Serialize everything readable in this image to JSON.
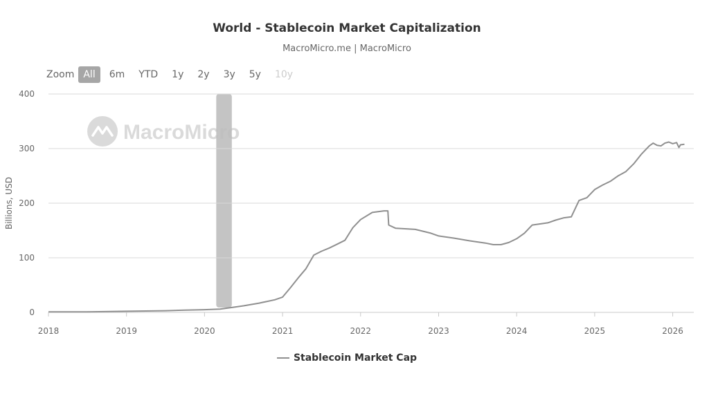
{
  "title": "World - Stablecoin Market Capitalization",
  "subtitle": "MacroMicro.me | MacroMicro",
  "watermark": "MacroMicro",
  "zoom": {
    "label": "Zoom",
    "buttons": [
      "All",
      "6m",
      "YTD",
      "1y",
      "2y",
      "3y",
      "5y",
      "10y"
    ],
    "active": "All",
    "disabled": [
      "10y"
    ]
  },
  "legend_label": "Stablecoin Market Cap",
  "colors": {
    "line": "#8f8f8f",
    "band": "#c4c4c4",
    "grid": "#d9d9d9"
  },
  "chart_data": {
    "type": "line",
    "title": "World - Stablecoin Market Capitalization",
    "subtitle": "MacroMicro.me | MacroMicro",
    "xlabel": "",
    "ylabel": "Billions, USD",
    "ylim": [
      0,
      400
    ],
    "xlim": [
      2018.0,
      2026.27
    ],
    "yticks": [
      0,
      100,
      200,
      300,
      400
    ],
    "xticks": [
      "2018",
      "2019",
      "2020",
      "2021",
      "2022",
      "2023",
      "2024",
      "2025",
      "2026"
    ],
    "grid": true,
    "legend_position": "bottom-center",
    "shaded_periods": [
      {
        "start": 2020.15,
        "end": 2020.35
      }
    ],
    "series": [
      {
        "name": "Stablecoin Market Cap",
        "x": [
          2017.9,
          2018.5,
          2019.0,
          2019.5,
          2019.75,
          2020.0,
          2020.2,
          2020.4,
          2020.5,
          2020.7,
          2020.9,
          2021.0,
          2021.1,
          2021.2,
          2021.3,
          2021.4,
          2021.5,
          2021.6,
          2021.7,
          2021.8,
          2021.9,
          2022.0,
          2022.15,
          2022.3,
          2022.35,
          2022.36,
          2022.45,
          2022.7,
          2022.9,
          2023.0,
          2023.2,
          2023.4,
          2023.6,
          2023.7,
          2023.8,
          2023.9,
          2024.0,
          2024.1,
          2024.2,
          2024.3,
          2024.4,
          2024.5,
          2024.6,
          2024.7,
          2024.8,
          2024.9,
          2025.0,
          2025.1,
          2025.2,
          2025.3,
          2025.4,
          2025.5,
          2025.6,
          2025.7,
          2025.75,
          2025.8,
          2025.85,
          2025.9,
          2025.95,
          2026.0,
          2026.05,
          2026.08,
          2026.1,
          2026.15
        ],
        "values": [
          1,
          1,
          2,
          3,
          4,
          5,
          6,
          10,
          12,
          17,
          23,
          28,
          45,
          63,
          80,
          105,
          112,
          118,
          125,
          132,
          155,
          170,
          183,
          186,
          186,
          160,
          154,
          152,
          145,
          140,
          136,
          131,
          127,
          124,
          124,
          128,
          135,
          145,
          160,
          162,
          164,
          169,
          173,
          175,
          205,
          210,
          225,
          233,
          240,
          250,
          258,
          272,
          290,
          305,
          310,
          306,
          305,
          310,
          312,
          309,
          311,
          302,
          307,
          308
        ]
      }
    ]
  }
}
